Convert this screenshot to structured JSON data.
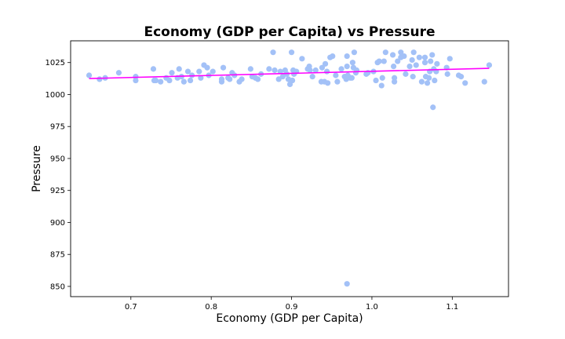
{
  "chart_data": {
    "type": "scatter",
    "title": "Economy (GDP per Capita) vs Pressure",
    "xlabel": "Economy (GDP per Capita)",
    "ylabel": "Pressure",
    "xlim": [
      0.625,
      1.17
    ],
    "ylim": [
      842,
      1042
    ],
    "xticks": [
      0.7,
      0.8,
      0.9,
      1.0,
      1.1
    ],
    "xtick_labels": [
      "0.7",
      "0.8",
      "0.9",
      "1.0",
      "1.1"
    ],
    "yticks": [
      850,
      875,
      900,
      925,
      950,
      975,
      1000,
      1025
    ],
    "ytick_labels": [
      "850",
      "875",
      "900",
      "925",
      "950",
      "975",
      "1000",
      "1025"
    ],
    "grid": false,
    "colors": {
      "points": "#a3c1f7",
      "trend": "#ff00ff"
    },
    "series": [
      {
        "kind": "points",
        "x": [
          0.648,
          0.661,
          0.668,
          0.685,
          0.706,
          0.706,
          0.728,
          0.729,
          0.731,
          0.737,
          0.744,
          0.748,
          0.751,
          0.758,
          0.76,
          0.763,
          0.766,
          0.771,
          0.774,
          0.776,
          0.785,
          0.787,
          0.791,
          0.795,
          0.797,
          0.802,
          0.813,
          0.813,
          0.815,
          0.821,
          0.823,
          0.826,
          0.829,
          0.835,
          0.838,
          0.849,
          0.851,
          0.855,
          0.858,
          0.862,
          0.872,
          0.877,
          0.879,
          0.884,
          0.886,
          0.889,
          0.892,
          0.894,
          0.896,
          0.898,
          0.9,
          0.901,
          0.902,
          0.903,
          0.906,
          0.913,
          0.92,
          0.922,
          0.923,
          0.926,
          0.93,
          0.937,
          0.938,
          0.941,
          0.942,
          0.944,
          0.945,
          0.948,
          0.951,
          0.955,
          0.957,
          0.962,
          0.966,
          0.968,
          0.969,
          0.969,
          0.97,
          0.973,
          0.975,
          0.976,
          0.977,
          0.978,
          0.98,
          0.981,
          0.993,
          0.995,
          1.002,
          1.005,
          1.007,
          1.009,
          1.012,
          1.013,
          1.015,
          1.017,
          1.026,
          1.027,
          1.028,
          1.028,
          1.032,
          1.036,
          1.036,
          1.04,
          1.042,
          1.047,
          1.05,
          1.051,
          1.052,
          1.055,
          1.059,
          1.062,
          1.066,
          1.066,
          1.067,
          1.069,
          1.071,
          1.072,
          1.073,
          1.075,
          1.076,
          1.077,
          1.078,
          1.08,
          1.081,
          1.093,
          1.094,
          1.097,
          1.108,
          1.111,
          1.116,
          1.14,
          1.146,
          0.969
        ],
        "y": [
          1015,
          1012,
          1013,
          1017,
          1011,
          1014,
          1020,
          1011,
          1011,
          1010,
          1013,
          1011,
          1017,
          1013,
          1020,
          1014,
          1010,
          1018,
          1011,
          1015,
          1018,
          1013,
          1023,
          1021,
          1015,
          1018,
          1012,
          1010,
          1021,
          1013,
          1012,
          1017,
          1015,
          1010,
          1012,
          1020,
          1014,
          1013,
          1012,
          1016,
          1020,
          1033,
          1019,
          1012,
          1018,
          1014,
          1019,
          1016,
          1012,
          1008,
          1033,
          1011,
          1019,
          1016,
          1018,
          1028,
          1020,
          1022,
          1019,
          1014,
          1019,
          1010,
          1021,
          1010,
          1024,
          1018,
          1009,
          1029,
          1030,
          1015,
          1010,
          1020,
          1014,
          1012,
          1022,
          1030,
          1015,
          1013,
          1013,
          1025,
          1021,
          1033,
          1017,
          1019,
          1016,
          1017,
          1018,
          1011,
          1025,
          1026,
          1007,
          1013,
          1026,
          1033,
          1031,
          1022,
          1013,
          1010,
          1026,
          1033,
          1029,
          1030,
          1016,
          1022,
          1027,
          1014,
          1033,
          1023,
          1029,
          1010,
          1029,
          1025,
          1014,
          1009,
          1013,
          1018,
          1026,
          1031,
          990,
          1020,
          1011,
          1018,
          1024,
          1021,
          1016,
          1028,
          1015,
          1014,
          1009,
          1010,
          1023,
          852
        ]
      },
      {
        "kind": "trend",
        "x": [
          0.648,
          1.146
        ],
        "y": [
          1012.5,
          1020.5
        ]
      }
    ]
  }
}
